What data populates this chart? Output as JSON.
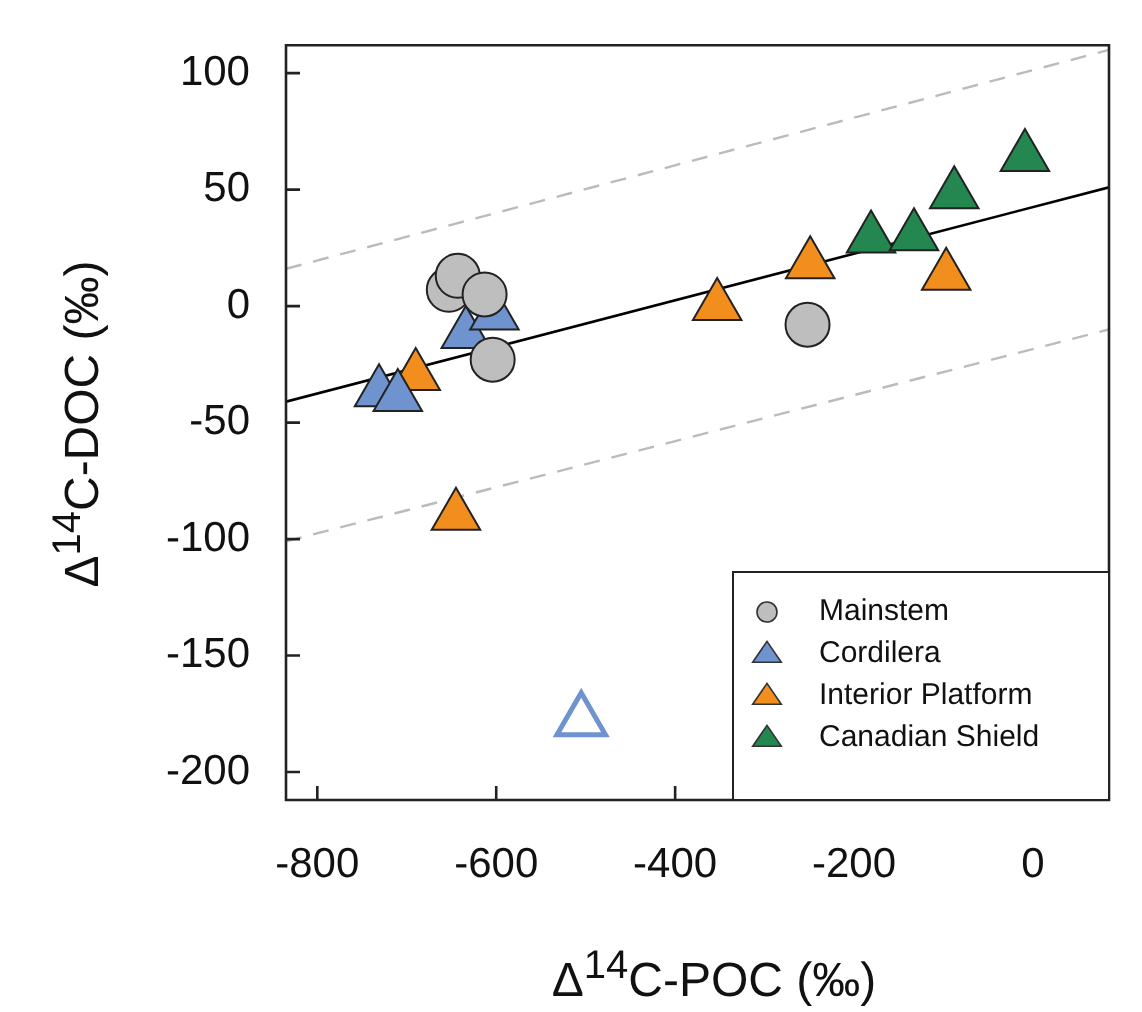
{
  "chart_data": {
    "type": "scatter",
    "xlabel": "Δ$^{14}$C-POC (‰)",
    "ylabel": "Δ$^{14}$C-DOC (‰)",
    "xlim": [
      -835,
      85
    ],
    "xticks": [
      -800,
      -600,
      -400,
      -200,
      0
    ],
    "ylim": [
      -212,
      112
    ],
    "yticks": [
      -200,
      -150,
      -100,
      -50,
      0,
      50,
      100
    ],
    "grid": false,
    "legend": "bottom right",
    "series": [
      {
        "name": "Mainstem",
        "color": "#bebebe",
        "marker": "circle",
        "x": [
          -653,
          -643,
          -613,
          -604,
          -252
        ],
        "values": [
          7,
          13,
          5,
          -23,
          -8
        ]
      },
      {
        "name": "Cordilera",
        "color": "#6f93cf",
        "marker": "triangle",
        "x": [
          -634,
          -602,
          -731,
          -710
        ],
        "values": [
          -12,
          -4,
          -37,
          -39
        ]
      },
      {
        "name": "Interior Platform",
        "color": "#f28e1e",
        "marker": "triangle",
        "x": [
          -690,
          -645,
          -353,
          -249,
          -97
        ],
        "values": [
          -30,
          -90,
          0,
          18,
          13
        ]
      },
      {
        "name": "Canadian Shield",
        "color": "#23874f",
        "marker": "triangle",
        "x": [
          -181,
          -133,
          -88,
          -9
        ],
        "values": [
          29,
          30,
          48,
          64
        ]
      },
      {
        "color": "#6f93cf",
        "marker": "triangle",
        "x": [
          -505
        ],
        "values": [
          -178
        ]
      },
      {
        "type": "line",
        "color": "#000000",
        "marker": "none",
        "line_style": "solid",
        "x": [
          -835,
          85
        ],
        "values": [
          -41,
          51
        ]
      },
      {
        "type": "line",
        "color": "#bbbbbb",
        "marker": "none",
        "line_style": "dashed",
        "x": [
          -835,
          85
        ],
        "values": [
          16,
          110
        ]
      },
      {
        "type": "line",
        "color": "#bbbbbb",
        "marker": "none",
        "line_style": "dashed",
        "x": [
          -835,
          85
        ],
        "values": [
          -101,
          -10
        ]
      }
    ]
  }
}
